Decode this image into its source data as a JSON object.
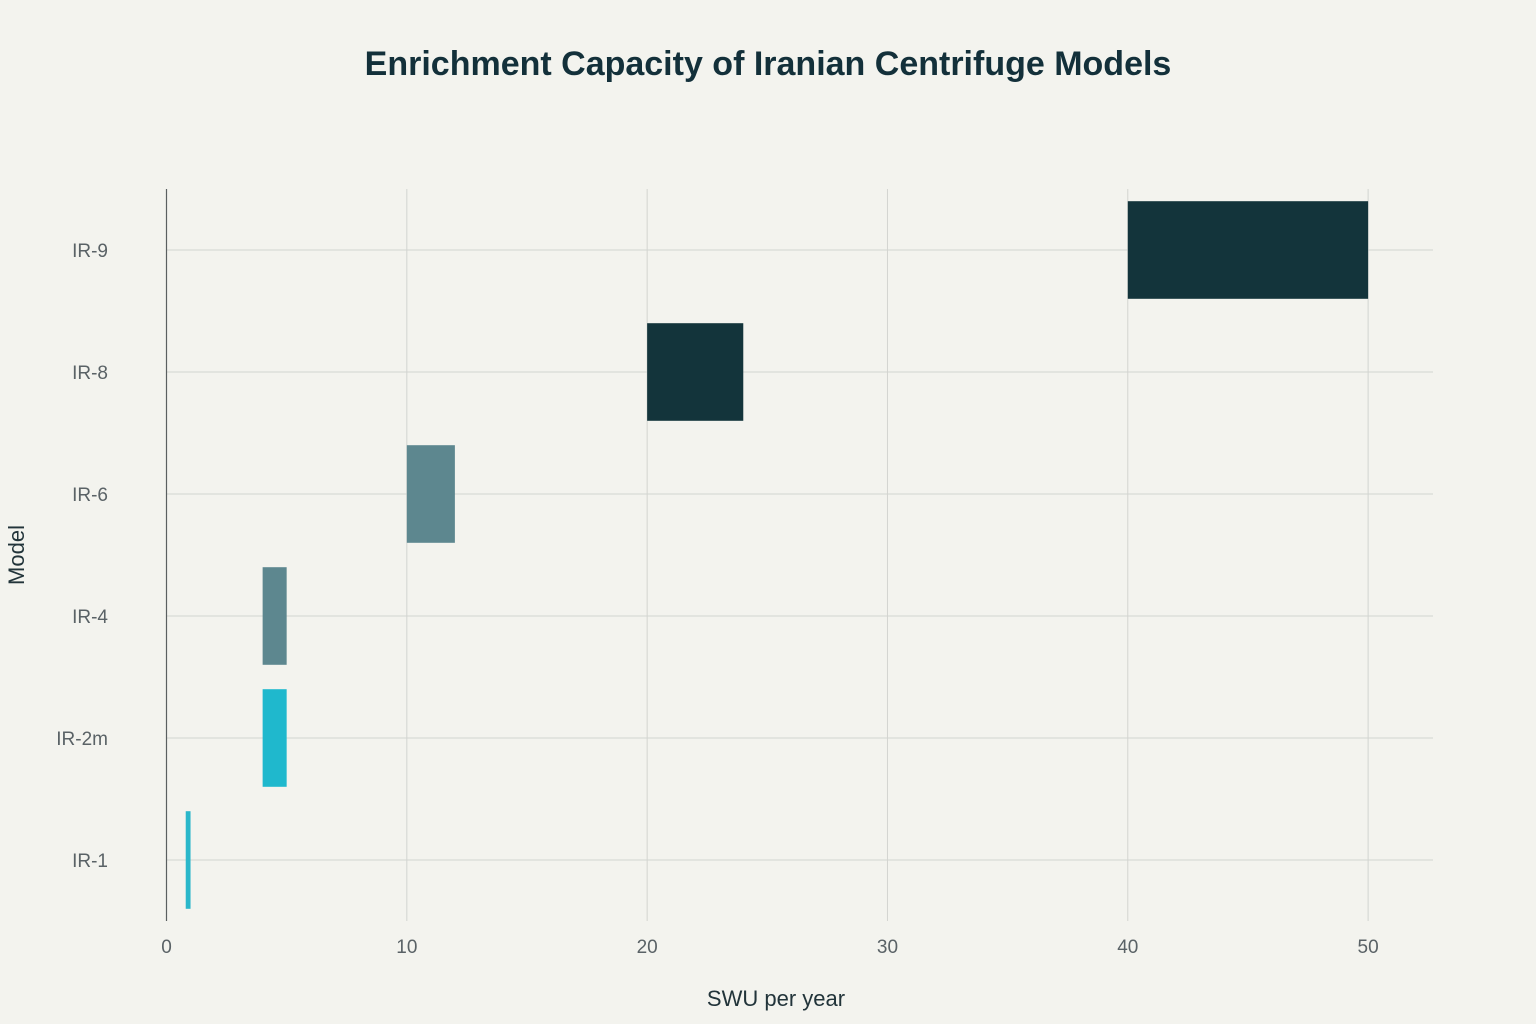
{
  "chart_data": {
    "type": "bar",
    "orientation": "horizontal",
    "title": "Enrichment Capacity of Iranian Centrifuge Models",
    "xlabel": "SWU per year",
    "ylabel": "Model",
    "xlim": [
      0,
      52.7
    ],
    "xticks": [
      0,
      10,
      20,
      30,
      40,
      50
    ],
    "grid": true,
    "categories": [
      "IR-1",
      "IR-2m",
      "IR-4",
      "IR-6",
      "IR-8",
      "IR-9"
    ],
    "ranges": [
      {
        "model": "IR-1",
        "min": 0.8,
        "max": 1.0,
        "color": "#2ab7ca"
      },
      {
        "model": "IR-2m",
        "min": 4.0,
        "max": 5.0,
        "color": "#1fb8cd"
      },
      {
        "model": "IR-4",
        "min": 4.0,
        "max": 5.0,
        "color": "#5d878f"
      },
      {
        "model": "IR-6",
        "min": 10.0,
        "max": 12.0,
        "color": "#5d878f"
      },
      {
        "model": "IR-8",
        "min": 20.0,
        "max": 24.0,
        "color": "#13343b"
      },
      {
        "model": "IR-9",
        "min": 40.0,
        "max": 50.0,
        "color": "#13343b"
      }
    ]
  }
}
